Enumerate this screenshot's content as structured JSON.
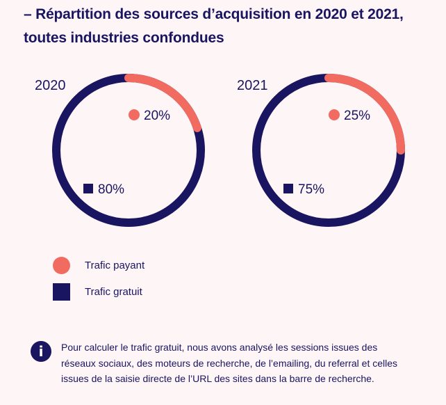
{
  "title": "– Répartition des sources d’acquisition en 2020 et 2021, toutes industries confondues",
  "colors": {
    "paid": "#f26b61",
    "free": "#1a1560",
    "background": "#fdf5f6"
  },
  "chart_data": [
    {
      "type": "pie",
      "style": "ring",
      "title": "2020",
      "categories": [
        "Trafic payant",
        "Trafic gratuit"
      ],
      "values": [
        20,
        80
      ],
      "labels": [
        "20%",
        "80%"
      ]
    },
    {
      "type": "pie",
      "style": "ring",
      "title": "2021",
      "categories": [
        "Trafic payant",
        "Trafic gratuit"
      ],
      "values": [
        25,
        75
      ],
      "labels": [
        "25%",
        "75%"
      ]
    }
  ],
  "legend": [
    {
      "label": "Trafic payant",
      "shape": "circle",
      "series": "paid"
    },
    {
      "label": "Trafic gratuit",
      "shape": "square",
      "series": "free"
    }
  ],
  "note": {
    "icon": "info-icon",
    "icon_glyph": "i",
    "text": "Pour calculer le trafic gratuit, nous avons analysé les sessions issues des réseaux sociaux, des moteurs de recherche, de l’emailing, du referral et celles issues de la saisie directe de l’URL des sites dans la barre de recherche."
  }
}
